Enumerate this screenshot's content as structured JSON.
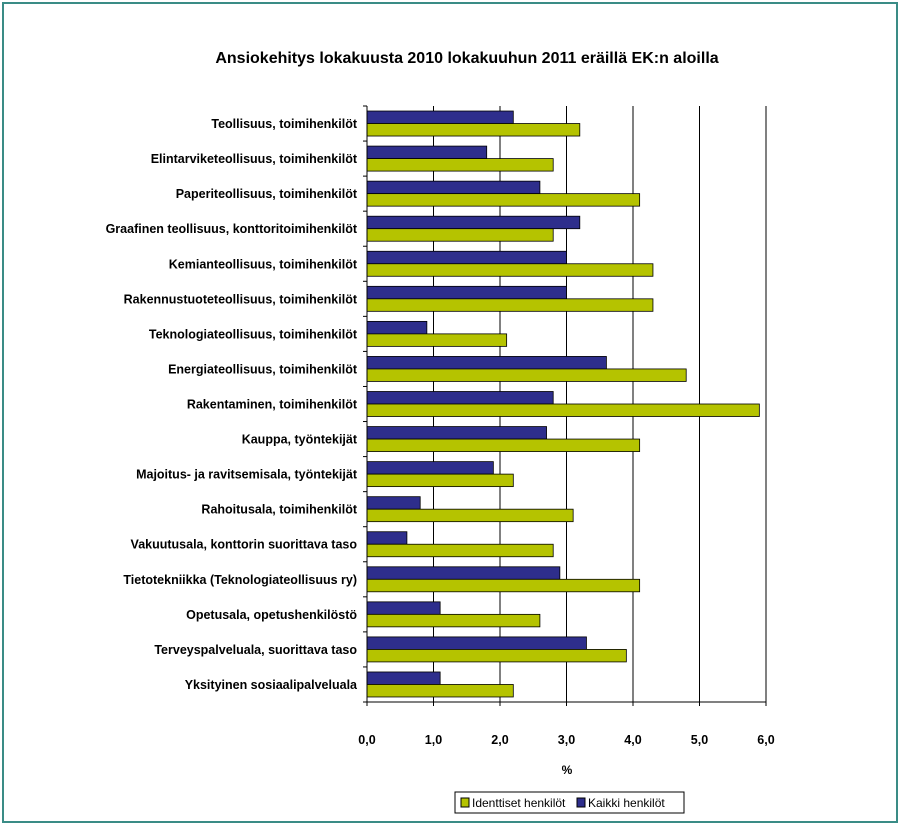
{
  "chart_data": {
    "type": "bar",
    "orientation": "horizontal",
    "title": "Ansiokehitys lokakuusta 2010 lokakuuhun 2011 eräillä EK:n aloilla",
    "xlabel": "%",
    "ylabel": "",
    "xlim": [
      0,
      6
    ],
    "x_ticks": [
      "0,0",
      "1,0",
      "2,0",
      "3,0",
      "4,0",
      "5,0",
      "6,0"
    ],
    "grid": "vertical major gridlines",
    "legend_position": "bottom",
    "categories": [
      "Teollisuus, toimihenkilöt",
      "Elintarviketeollisuus, toimihenkilöt",
      "Paperiteollisuus, toimihenkilöt",
      "Graafinen teollisuus, konttoritoimihenkilöt",
      "Kemianteollisuus, toimihenkilöt",
      "Rakennustuoteteollisuus, toimihenkilöt",
      "Teknologiateollisuus, toimihenkilöt",
      "Energiateollisuus, toimihenkilöt",
      "Rakentaminen, toimihenkilöt",
      "Kauppa, työntekijät",
      "Majoitus- ja ravitsemisala, työntekijät",
      "Rahoitusala, toimihenkilöt",
      "Vakuutusala, konttorin suorittava taso",
      "Tietotekniikka (Teknologiateollisuus ry)",
      "Opetusala, opetushenkilöstö",
      "Terveyspalveluala, suorittava taso",
      "Yksityinen sosiaalipalveluala"
    ],
    "series": [
      {
        "name": "Kaikki henkilöt",
        "color": "#2e2e8c",
        "values": [
          2.2,
          1.8,
          2.6,
          3.2,
          3.0,
          3.0,
          0.9,
          3.6,
          2.8,
          2.7,
          1.9,
          0.8,
          0.6,
          2.9,
          1.1,
          3.3,
          1.1
        ]
      },
      {
        "name": "Identtiset henkilöt",
        "color": "#b5c300",
        "values": [
          3.2,
          2.8,
          4.1,
          2.8,
          4.3,
          4.3,
          2.1,
          4.8,
          5.9,
          4.1,
          2.2,
          3.1,
          2.8,
          4.1,
          2.6,
          3.9,
          2.2
        ]
      }
    ]
  },
  "legend": {
    "items": [
      {
        "label": "Identtiset henkilöt",
        "color": "#b5c300"
      },
      {
        "label": "Kaikki henkilöt",
        "color": "#2e2e8c"
      }
    ]
  }
}
